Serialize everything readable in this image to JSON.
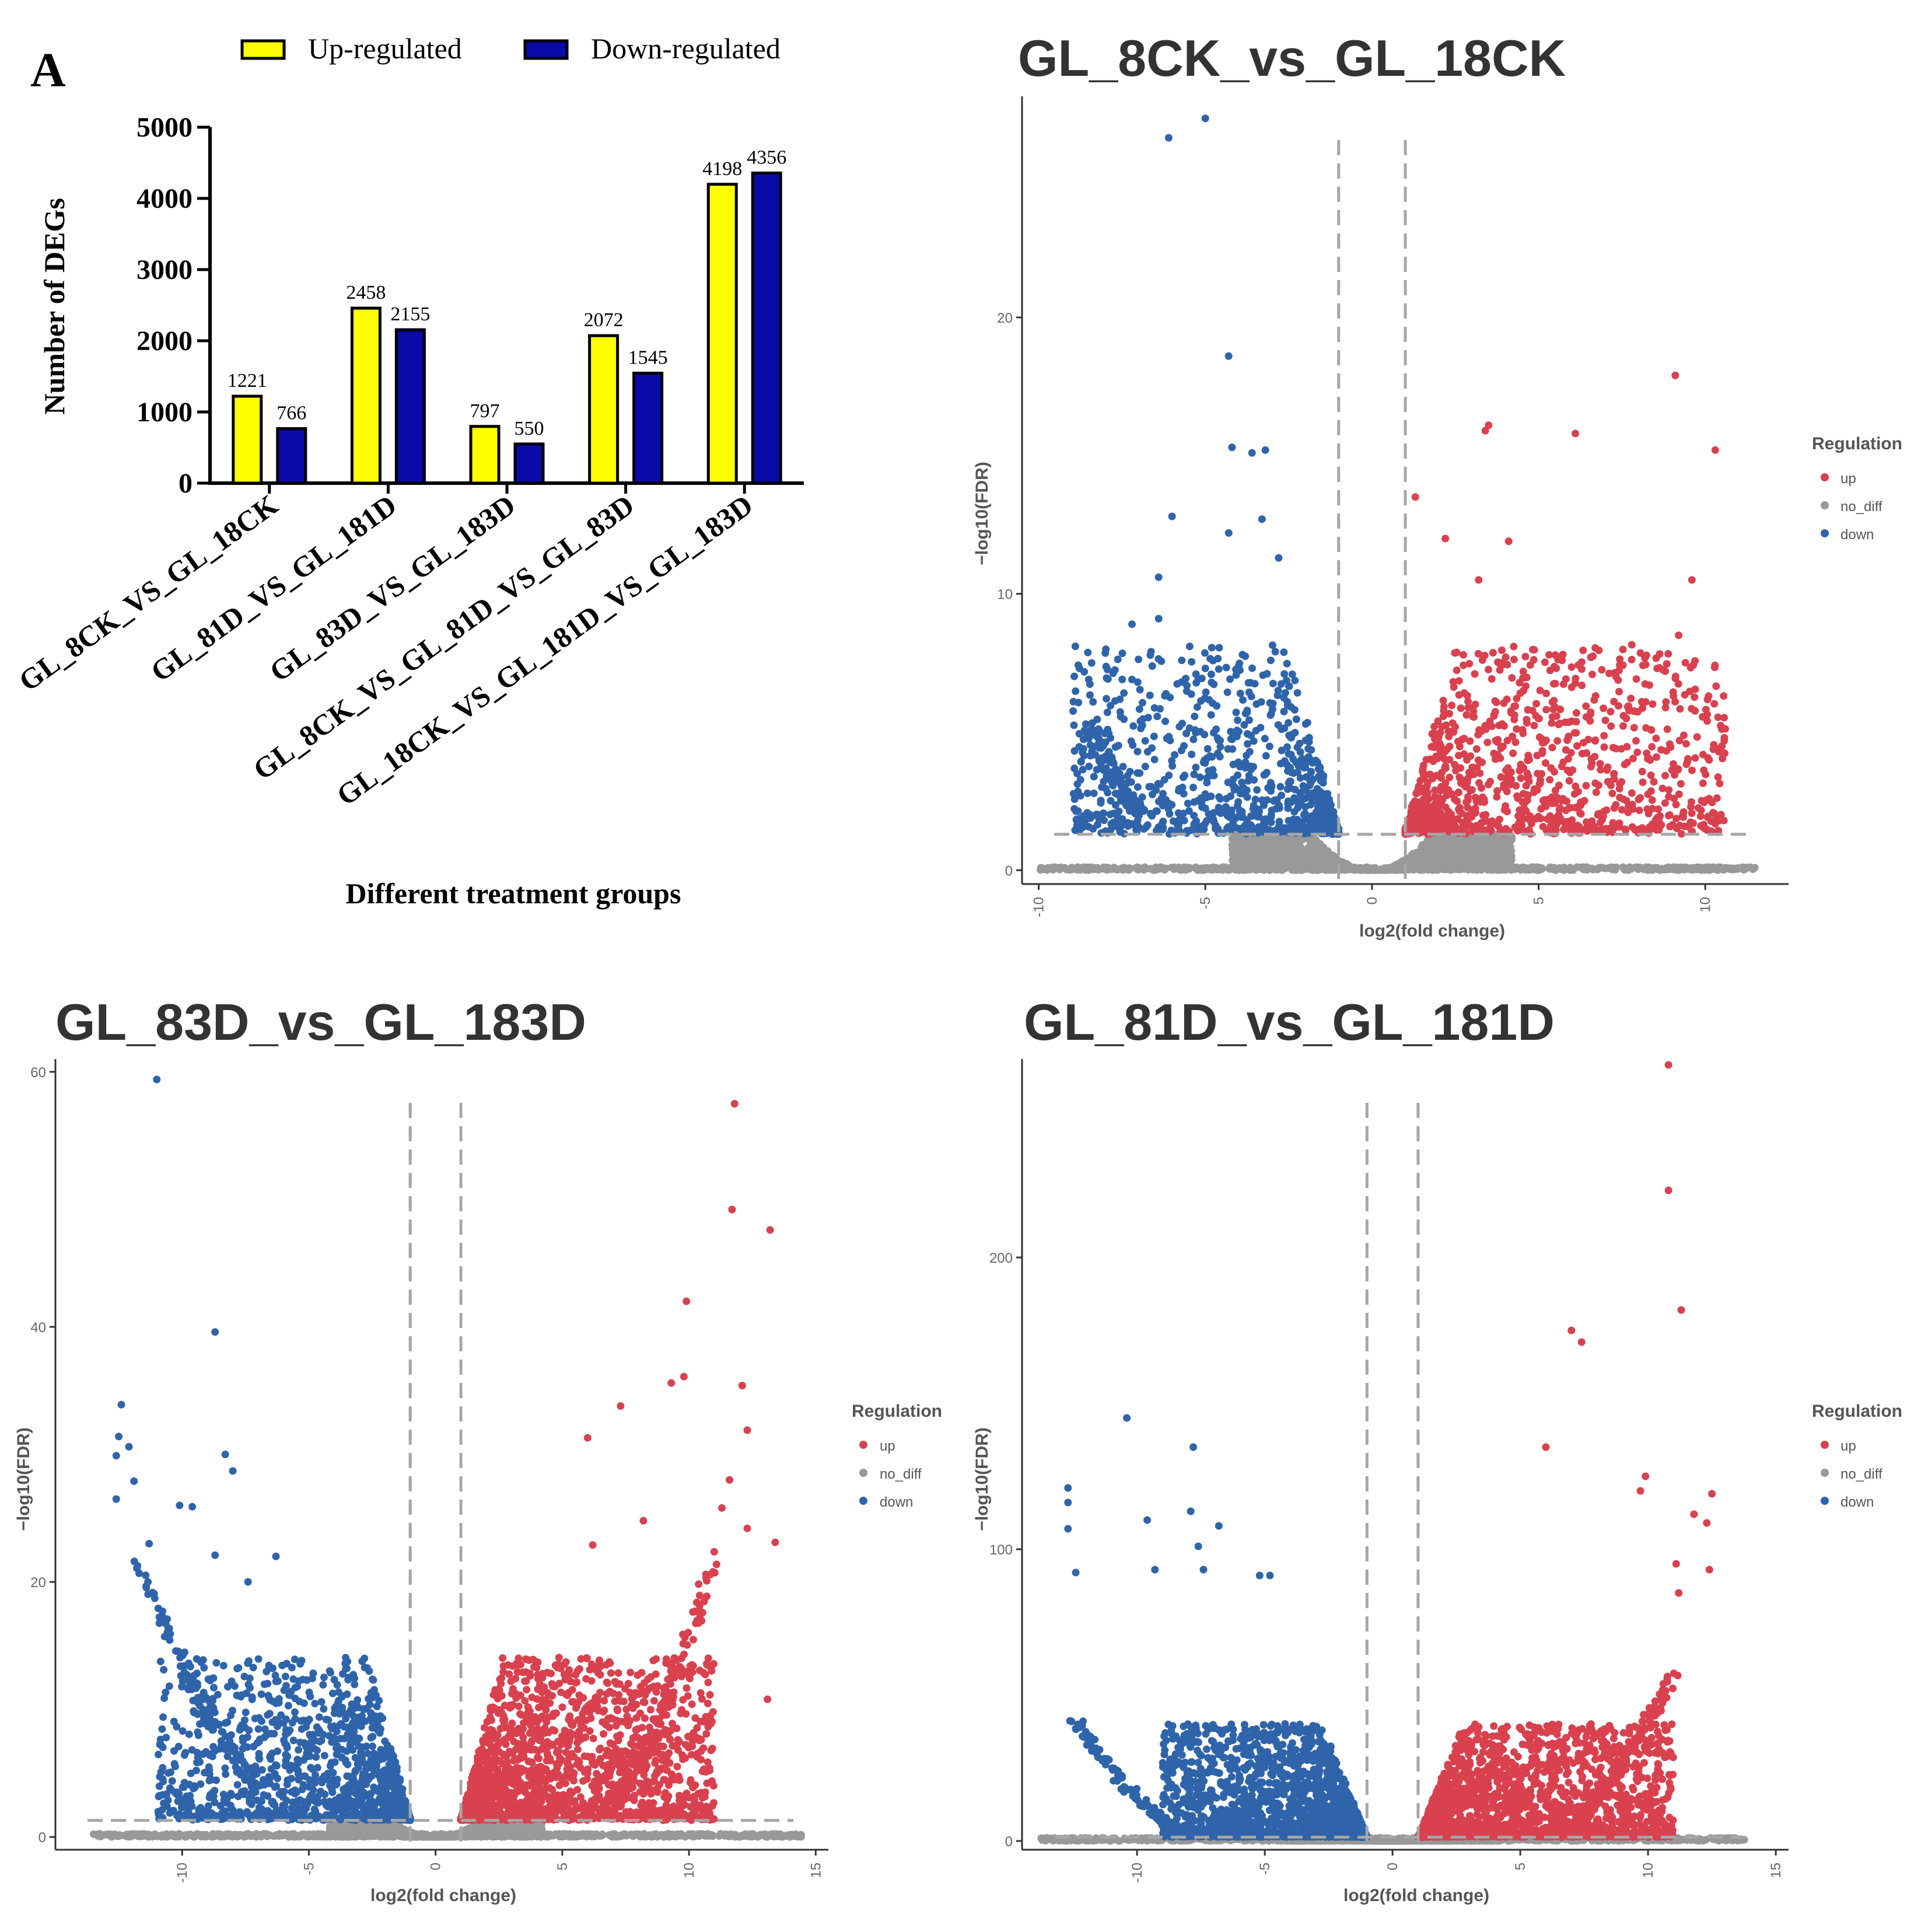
{
  "colors": {
    "up_bar": "#ffff00",
    "down_bar": "#0a0aa8",
    "volcano_up": "#d9414f",
    "volcano_down": "#2f64aa",
    "volcano_nodiff": "#999999",
    "threshold": "#a6a6a6",
    "axis": "#333333"
  },
  "chart_data": [
    {
      "type": "bar",
      "panel_label": "A",
      "title": "",
      "categories": [
        "GL_8CK_VS_GL_18CK",
        "GL_81D_VS_GL_181D",
        "GL_83D_VS_GL_183D",
        "GL_8CK_VS_GL_81D_VS_GL_83D",
        "GL_18CK_VS_GL_181D_VS_GL_183D"
      ],
      "series": [
        {
          "name": "Up-regulated",
          "values": [
            1221,
            2458,
            797,
            2072,
            4198
          ]
        },
        {
          "name": "Down-regulated",
          "values": [
            766,
            2155,
            550,
            1545,
            4356
          ]
        }
      ],
      "data_labels": [
        [
          "1221",
          "766"
        ],
        [
          "2458",
          "2155"
        ],
        [
          "797",
          "550"
        ],
        [
          "2072",
          "1545"
        ],
        [
          "4198",
          "4356"
        ]
      ],
      "xlabel": "Different treatment groups",
      "ylabel": "Number of DEGs",
      "ylim": [
        0,
        5000
      ],
      "yticks": [
        0,
        1000,
        2000,
        3000,
        4000,
        5000
      ],
      "ytick_labels": [
        "0",
        "1000",
        "2000",
        "3000",
        "4000",
        "5000"
      ],
      "legend": "top"
    },
    {
      "type": "scatter",
      "title": "GL_8CK_vs_GL_18CK",
      "xlabel": "log2(fold change)",
      "ylabel": "−log10(FDR)",
      "xlim": [
        -10.5,
        12.5
      ],
      "ylim": [
        -0.5,
        28
      ],
      "xticks": [
        -10,
        -5,
        0,
        5,
        10
      ],
      "xtick_labels": [
        "-10",
        "-5",
        "0",
        "5",
        "10"
      ],
      "yticks": [
        0,
        10,
        20
      ],
      "ytick_labels": [
        "0",
        "10",
        "20"
      ],
      "vlines": [
        -1,
        1
      ],
      "hline": 1.3,
      "legend": {
        "title": "Regulation",
        "items": [
          "up",
          "no_diff",
          "down"
        ]
      },
      "x_range_up": [
        1.0,
        10.6
      ],
      "x_range_down": [
        -9.0,
        -1.0
      ],
      "y_cap": 8,
      "dense_up": 1100,
      "dense_down": 950,
      "nodiff": 1600,
      "baseline": 700,
      "baseline_x": [
        -10,
        11.5
      ],
      "up_outliers": [
        [
          1.3,
          13.5
        ],
        [
          2.2,
          12.0
        ],
        [
          3.2,
          10.5
        ],
        [
          3.4,
          15.9
        ],
        [
          3.5,
          16.1
        ],
        [
          4.1,
          11.9
        ],
        [
          6.1,
          15.8
        ],
        [
          9.1,
          17.9
        ],
        [
          9.6,
          10.5
        ],
        [
          10.3,
          15.2
        ],
        [
          9.2,
          8.5
        ],
        [
          10.1,
          6.3
        ],
        [
          10.5,
          5.1
        ],
        [
          8.8,
          7.2
        ]
      ],
      "down_outliers": [
        [
          -6.1,
          26.5
        ],
        [
          -5.0,
          27.2
        ],
        [
          -4.3,
          18.6
        ],
        [
          -4.2,
          15.3
        ],
        [
          -3.6,
          15.1
        ],
        [
          -3.2,
          15.2
        ],
        [
          -6.0,
          12.8
        ],
        [
          -4.3,
          12.2
        ],
        [
          -3.3,
          12.7
        ],
        [
          -2.8,
          11.3
        ],
        [
          -6.4,
          10.6
        ],
        [
          -8.9,
          8.1
        ],
        [
          -8.5,
          6.9
        ],
        [
          -7.2,
          8.9
        ],
        [
          -7.2,
          6.9
        ],
        [
          -6.4,
          9.1
        ],
        [
          -5.0,
          7.3
        ]
      ],
      "curve_down": {
        "x0": -7.0,
        "x1": -8.5,
        "y0": 2.2,
        "y1": 5.3
      },
      "curve_up": null
    },
    {
      "type": "scatter",
      "title": "GL_83D_vs_GL_183D",
      "xlabel": "log2(fold change)",
      "ylabel": "−log10(FDR)",
      "xlim": [
        -15,
        15.5
      ],
      "ylim": [
        -1,
        61
      ],
      "xticks": [
        -10,
        -5,
        0,
        5,
        10,
        15
      ],
      "xtick_labels": [
        "-10",
        "-5",
        "0",
        "5",
        "10",
        "15"
      ],
      "yticks": [
        0,
        20,
        40,
        60
      ],
      "ytick_labels": [
        "0",
        "20",
        "40",
        "60"
      ],
      "vlines": [
        -1,
        1
      ],
      "hline": 1.3,
      "legend": {
        "title": "Regulation",
        "items": [
          "up",
          "no_diff",
          "down"
        ]
      },
      "x_range_up": [
        1.0,
        11.0
      ],
      "x_range_down": [
        -11.0,
        -1.0
      ],
      "y_cap": 14,
      "dense_up": 1900,
      "dense_down": 1300,
      "nodiff": 1700,
      "baseline": 800,
      "baseline_x": [
        -13.5,
        14.5
      ],
      "up_outliers": [
        [
          11.8,
          57.5
        ],
        [
          11.7,
          49.2
        ],
        [
          13.2,
          47.6
        ],
        [
          9.9,
          42.0
        ],
        [
          9.8,
          36.1
        ],
        [
          9.3,
          35.6
        ],
        [
          12.1,
          35.4
        ],
        [
          7.3,
          33.8
        ],
        [
          6.0,
          31.3
        ],
        [
          12.3,
          31.9
        ],
        [
          11.6,
          28.0
        ],
        [
          11.3,
          25.8
        ],
        [
          12.3,
          24.2
        ],
        [
          13.4,
          23.1
        ],
        [
          13.1,
          10.8
        ],
        [
          8.2,
          24.8
        ],
        [
          6.2,
          22.9
        ]
      ],
      "down_outliers": [
        [
          -11.0,
          59.4
        ],
        [
          -8.7,
          39.6
        ],
        [
          -12.4,
          33.9
        ],
        [
          -12.1,
          30.6
        ],
        [
          -12.6,
          29.9
        ],
        [
          -12.5,
          31.4
        ],
        [
          -8.3,
          30.0
        ],
        [
          -8.0,
          28.7
        ],
        [
          -11.9,
          27.9
        ],
        [
          -10.1,
          26.0
        ],
        [
          -9.6,
          25.9
        ],
        [
          -12.6,
          26.5
        ],
        [
          -11.3,
          23.0
        ],
        [
          -8.7,
          22.1
        ],
        [
          -6.3,
          22.0
        ],
        [
          -7.4,
          20.0
        ]
      ],
      "curve_down": {
        "x0": -6.8,
        "x1": -11.8,
        "y0": 4.0,
        "y1": 22.0
      },
      "curve_up": {
        "x0": 7.0,
        "x1": 11.0,
        "y0": 3.0,
        "y1": 22.0
      }
    },
    {
      "type": "scatter",
      "title": "GL_81D_vs_GL_181D",
      "xlabel": "log2(fold change)",
      "ylabel": "−log10(FDR)",
      "xlim": [
        -14.5,
        15.5
      ],
      "ylim": [
        -3,
        268
      ],
      "xticks": [
        -10,
        -5,
        0,
        5,
        10,
        15
      ],
      "xtick_labels": [
        "-10",
        "-5",
        "0",
        "5",
        "10",
        "15"
      ],
      "yticks": [
        0,
        100,
        200
      ],
      "ytick_labels": [
        "0",
        "100",
        "200"
      ],
      "vlines": [
        -1,
        1
      ],
      "hline": 1.3,
      "legend": {
        "title": "Regulation",
        "items": [
          "up",
          "no_diff",
          "down"
        ]
      },
      "x_range_up": [
        1.0,
        11.0
      ],
      "x_range_down": [
        -9.0,
        -1.0
      ],
      "y_cap": 40,
      "dense_up": 1900,
      "dense_down": 1800,
      "nodiff": 1700,
      "baseline": 800,
      "baseline_x": [
        -13.8,
        13.8
      ],
      "up_outliers": [
        [
          10.8,
          266
        ],
        [
          10.8,
          223
        ],
        [
          11.3,
          182
        ],
        [
          7.0,
          175
        ],
        [
          7.4,
          171
        ],
        [
          6.0,
          135
        ],
        [
          9.9,
          125
        ],
        [
          9.7,
          120
        ],
        [
          12.5,
          119
        ],
        [
          12.3,
          109
        ],
        [
          11.8,
          112
        ],
        [
          12.4,
          93
        ],
        [
          11.1,
          95
        ],
        [
          11.2,
          85
        ]
      ],
      "down_outliers": [
        [
          -10.4,
          145
        ],
        [
          -7.8,
          135
        ],
        [
          -12.7,
          121
        ],
        [
          -12.7,
          116
        ],
        [
          -7.9,
          113
        ],
        [
          -6.8,
          108
        ],
        [
          -12.7,
          107
        ],
        [
          -9.6,
          110
        ],
        [
          -7.6,
          101
        ],
        [
          -9.3,
          93
        ],
        [
          -7.4,
          93
        ],
        [
          -12.4,
          92
        ],
        [
          -5.2,
          91
        ],
        [
          -4.8,
          91
        ]
      ],
      "curve_down": {
        "x0": -8.0,
        "x1": -12.5,
        "y0": 2.0,
        "y1": 42.0
      },
      "curve_up": {
        "x0": 6.5,
        "x1": 11.0,
        "y0": 2.0,
        "y1": 58.0
      }
    }
  ]
}
